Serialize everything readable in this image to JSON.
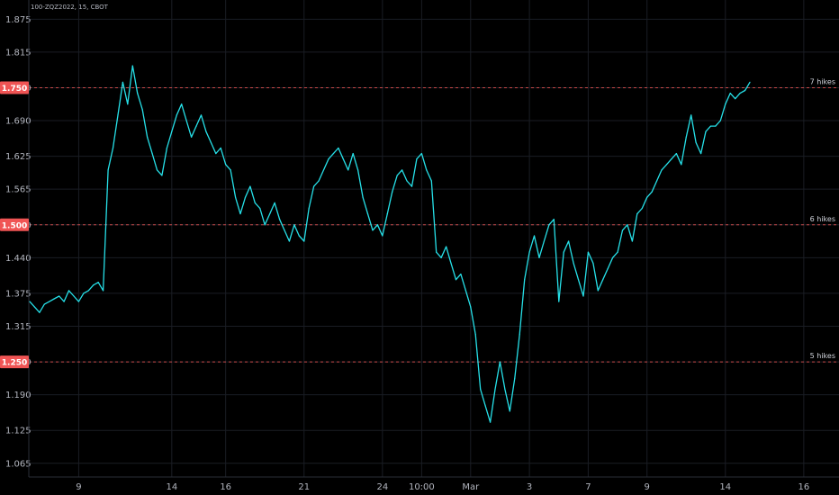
{
  "symbol_info": "100-ZQZ2022, 15, CBOT",
  "chart_data": {
    "type": "line",
    "title": "",
    "xlabel": "",
    "ylabel": "",
    "ylim": [
      1.04,
      1.91
    ],
    "grid": true,
    "colors": {
      "background": "#000000",
      "series": "#26e0e8",
      "grid": "#1a1d24",
      "axis_text": "#b2b5be",
      "hline": "#c94a4a",
      "hline_label_bg": "#f05454"
    },
    "y_ticks": [
      "1.875",
      "1.815",
      "1.750",
      "1.690",
      "1.625",
      "1.565",
      "1.500",
      "1.440",
      "1.375",
      "1.315",
      "1.250",
      "1.190",
      "1.125",
      "1.065"
    ],
    "x_ticks": [
      {
        "label": "9",
        "i": 10
      },
      {
        "label": "14",
        "i": 29
      },
      {
        "label": "16",
        "i": 40
      },
      {
        "label": "21",
        "i": 56
      },
      {
        "label": "24",
        "i": 72
      },
      {
        "label": "10:00",
        "i": 80
      },
      {
        "label": "Mar",
        "i": 90
      },
      {
        "label": "3",
        "i": 102
      },
      {
        "label": "7",
        "i": 114
      },
      {
        "label": "9",
        "i": 126
      },
      {
        "label": "14",
        "i": 142
      },
      {
        "label": "16",
        "i": 158
      }
    ],
    "horizontal_lines": [
      {
        "value": 1.75,
        "label": "1.750",
        "annotation": "7 hikes"
      },
      {
        "value": 1.5,
        "label": "1.500",
        "annotation": "6 hikes"
      },
      {
        "value": 1.25,
        "label": "1.250",
        "annotation": "5 hikes"
      }
    ],
    "series": [
      {
        "name": "",
        "values": [
          1.36,
          1.35,
          1.34,
          1.355,
          1.36,
          1.365,
          1.37,
          1.36,
          1.38,
          1.37,
          1.36,
          1.375,
          1.38,
          1.39,
          1.395,
          1.38,
          1.6,
          1.64,
          1.7,
          1.76,
          1.72,
          1.79,
          1.74,
          1.71,
          1.66,
          1.63,
          1.6,
          1.59,
          1.64,
          1.67,
          1.7,
          1.72,
          1.69,
          1.66,
          1.68,
          1.7,
          1.67,
          1.65,
          1.63,
          1.64,
          1.61,
          1.6,
          1.55,
          1.52,
          1.55,
          1.57,
          1.54,
          1.53,
          1.5,
          1.52,
          1.54,
          1.51,
          1.49,
          1.47,
          1.5,
          1.48,
          1.47,
          1.53,
          1.57,
          1.58,
          1.6,
          1.62,
          1.63,
          1.64,
          1.62,
          1.6,
          1.63,
          1.6,
          1.55,
          1.52,
          1.49,
          1.5,
          1.48,
          1.52,
          1.56,
          1.59,
          1.6,
          1.58,
          1.57,
          1.62,
          1.63,
          1.6,
          1.58,
          1.45,
          1.44,
          1.46,
          1.43,
          1.4,
          1.41,
          1.38,
          1.35,
          1.3,
          1.2,
          1.17,
          1.14,
          1.2,
          1.25,
          1.2,
          1.16,
          1.22,
          1.3,
          1.4,
          1.45,
          1.48,
          1.44,
          1.47,
          1.5,
          1.51,
          1.36,
          1.45,
          1.47,
          1.43,
          1.4,
          1.37,
          1.45,
          1.43,
          1.38,
          1.4,
          1.42,
          1.44,
          1.45,
          1.49,
          1.5,
          1.47,
          1.52,
          1.53,
          1.55,
          1.56,
          1.58,
          1.6,
          1.61,
          1.62,
          1.63,
          1.61,
          1.66,
          1.7,
          1.65,
          1.63,
          1.67,
          1.68,
          1.68,
          1.69,
          1.72,
          1.74,
          1.73,
          1.74,
          1.745,
          1.76
        ]
      }
    ]
  }
}
